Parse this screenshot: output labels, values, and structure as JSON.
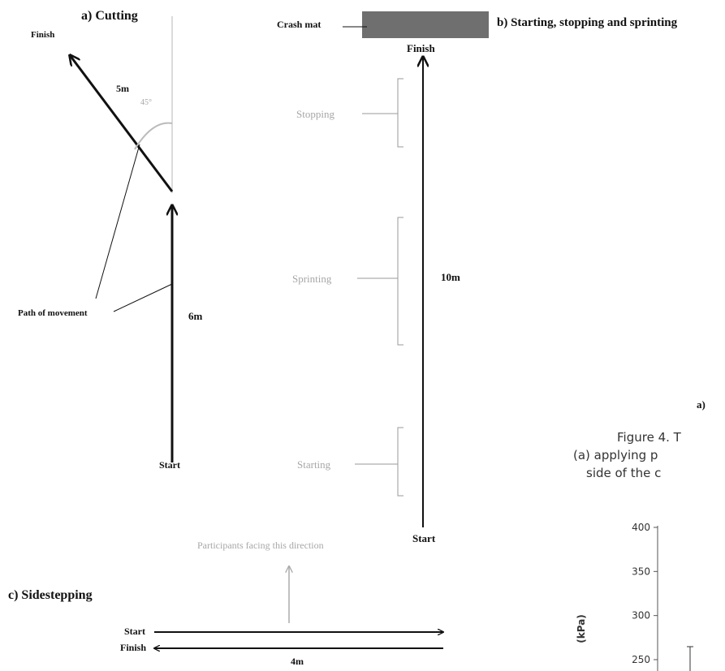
{
  "panel_a": {
    "title": "a) Cutting",
    "finish": "Finish",
    "dist_diag": "5m",
    "angle": "45°",
    "dist_vert": "6m",
    "path": "Path of movement",
    "start": "Start"
  },
  "panel_b": {
    "title": "b) Starting, stopping and sprinting",
    "crash_mat": "Crash mat",
    "finish": "Finish",
    "stopping": "Stopping",
    "sprinting": "Sprinting",
    "starting": "Starting",
    "distance": "10m",
    "start": "Start"
  },
  "panel_c": {
    "title": "c) Sidestepping",
    "facing": "Participants facing this direction",
    "start": "Start",
    "finish": "Finish",
    "distance": "4m"
  },
  "right_fragment": {
    "a_label": "a)",
    "caption_line1": "Figure 4. T",
    "caption_line2": "(a) applying p",
    "caption_line3": "side of the c"
  },
  "chart_data": {
    "type": "bar",
    "ylabel": "(kPa)",
    "yticks": [
      400,
      350,
      300,
      250
    ],
    "ylim": [
      250,
      400
    ]
  },
  "colors": {
    "mat": "#6f6f6f",
    "grey_text": "#a7a7a7",
    "line": "#111111"
  }
}
